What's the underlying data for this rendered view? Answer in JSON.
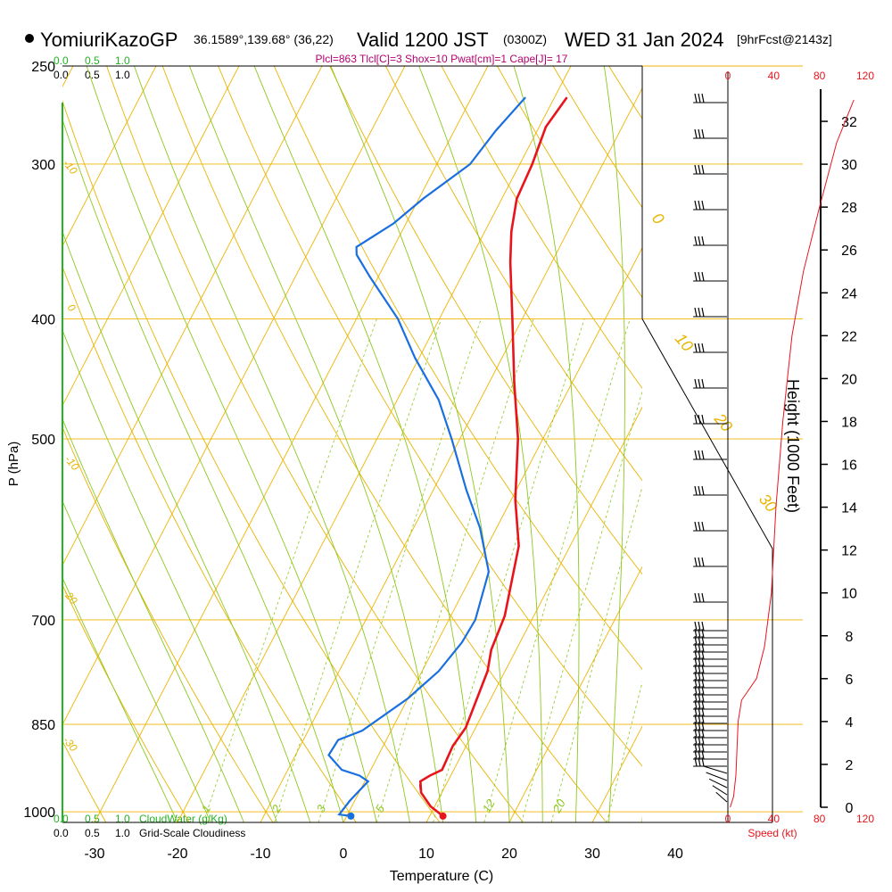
{
  "header": {
    "station": "YomiuriKazoGP",
    "coords": "36.1589°,139.68° (36,22)",
    "valid_prefix": "Valid 1200 JST",
    "utc": "(0300Z)",
    "date": "WED 31 Jan 2024",
    "forecast": "[9hrFcst@2143z]",
    "indices": "Plcl=863 Tlcl[C]=3 Shox=10 Pwat[cm]=1 Cape[J]= 17"
  },
  "scales": {
    "cloud_top_green": [
      "0.0",
      "0.5",
      "1.0"
    ],
    "cloud_top_black": [
      "0.0",
      "0.5",
      "1.0"
    ],
    "cloud_bottom_green": [
      "0.0",
      "0.5",
      "1.0"
    ],
    "cloud_bottom_black": [
      "0.0",
      "0.5",
      "1.0"
    ],
    "cloudwater_label": "CloudWater (g/Kg)",
    "cloudiness_label": "Grid-Scale Cloudiness",
    "speed_ticks": [
      "0",
      "40",
      "80",
      "120"
    ],
    "speed_label": "Speed (kt)"
  },
  "colors": {
    "temperature": "#e8141c",
    "dewpoint": "#1a6fe0",
    "isotherm": "#f0b400",
    "dry_adiabat": "#e8b400",
    "moist_adiabat": "#8cc81e",
    "mixing_ratio": "#8cc81e",
    "cloud": "#22b422",
    "speed": "#e8141c"
  },
  "chart_data": {
    "type": "line",
    "title": "YomiuriKazoGP Valid 1200 JST (0300Z) WED 31 Jan 2024",
    "xlabel": "Temperature (C)",
    "ylabel": "P (hPa)",
    "y2label": "Height (1000 Feet)",
    "xlim": [
      -35,
      45
    ],
    "ylim": [
      1020,
      250
    ],
    "x_ticks": [
      "-30",
      "-20",
      "-10",
      "0",
      "10",
      "20",
      "30",
      "40"
    ],
    "pressure_ticks": [
      "250",
      "300",
      "400",
      "500",
      "700",
      "850",
      "1000"
    ],
    "height_ticks": [
      "0",
      "2",
      "4",
      "6",
      "8",
      "10",
      "12",
      "14",
      "16",
      "18",
      "20",
      "22",
      "24",
      "26",
      "28",
      "30",
      "32"
    ],
    "dry_adiabat_labels": [
      "-10",
      "0",
      "-10",
      "-20",
      "-30",
      "0",
      "10",
      "20",
      "30"
    ],
    "mixing_ratio_labels": [
      "1",
      "2",
      "3",
      "5",
      "12",
      "20"
    ],
    "series": [
      {
        "name": "Temperature",
        "points": [
          [
            11.6,
            1008
          ],
          [
            9.5,
            990
          ],
          [
            7.5,
            965
          ],
          [
            6.7,
            945
          ],
          [
            7.5,
            935
          ],
          [
            8.6,
            925
          ],
          [
            8.4,
            885
          ],
          [
            8.8,
            855
          ],
          [
            7.9,
            770
          ],
          [
            7.0,
            740
          ],
          [
            6.5,
            695
          ],
          [
            3.8,
            610
          ],
          [
            0.5,
            560
          ],
          [
            -3.0,
            500
          ],
          [
            -7.0,
            450
          ],
          [
            -11.2,
            400
          ],
          [
            -15.0,
            360
          ],
          [
            -16.8,
            340
          ],
          [
            -18.2,
            320
          ],
          [
            -18.5,
            300
          ],
          [
            -19.2,
            280
          ],
          [
            -18.5,
            265
          ]
        ]
      },
      {
        "name": "Dewpoint",
        "points": [
          [
            0.5,
            1008
          ],
          [
            -1.0,
            1005
          ],
          [
            -0.6,
            980
          ],
          [
            0.4,
            945
          ],
          [
            -1.0,
            935
          ],
          [
            -3.5,
            925
          ],
          [
            -6.0,
            900
          ],
          [
            -5.8,
            875
          ],
          [
            -3.5,
            860
          ],
          [
            0.0,
            810
          ],
          [
            2.0,
            770
          ],
          [
            3.0,
            730
          ],
          [
            3.2,
            700
          ],
          [
            1.8,
            640
          ],
          [
            -2.0,
            590
          ],
          [
            -6.0,
            550
          ],
          [
            -11.0,
            500
          ],
          [
            -15.0,
            465
          ],
          [
            -20.5,
            430
          ],
          [
            -25.0,
            400
          ],
          [
            -31.0,
            370
          ],
          [
            -34.0,
            355
          ],
          [
            -34.5,
            350
          ],
          [
            -31.5,
            335
          ],
          [
            -29.5,
            320
          ],
          [
            -26.0,
            300
          ],
          [
            -25.0,
            282
          ],
          [
            -23.5,
            265
          ]
        ]
      },
      {
        "name": "Parcel",
        "points": [
          [
            11.6,
            1008
          ],
          [
            9.0,
            985
          ],
          [
            7.2,
            960
          ],
          [
            6.8,
            950
          ]
        ]
      },
      {
        "name": "Wind speed (kt)",
        "points": [
          [
            2,
            0
          ],
          [
            5,
            0.5
          ],
          [
            7,
            1.5
          ],
          [
            8,
            2.8
          ],
          [
            9,
            4
          ],
          [
            12,
            5
          ],
          [
            25,
            6
          ],
          [
            32,
            7.5
          ],
          [
            38,
            10
          ],
          [
            42,
            14
          ],
          [
            48,
            18
          ],
          [
            56,
            22
          ],
          [
            66,
            25
          ],
          [
            80,
            28
          ],
          [
            95,
            31
          ],
          [
            110,
            33
          ]
        ]
      }
    ]
  }
}
